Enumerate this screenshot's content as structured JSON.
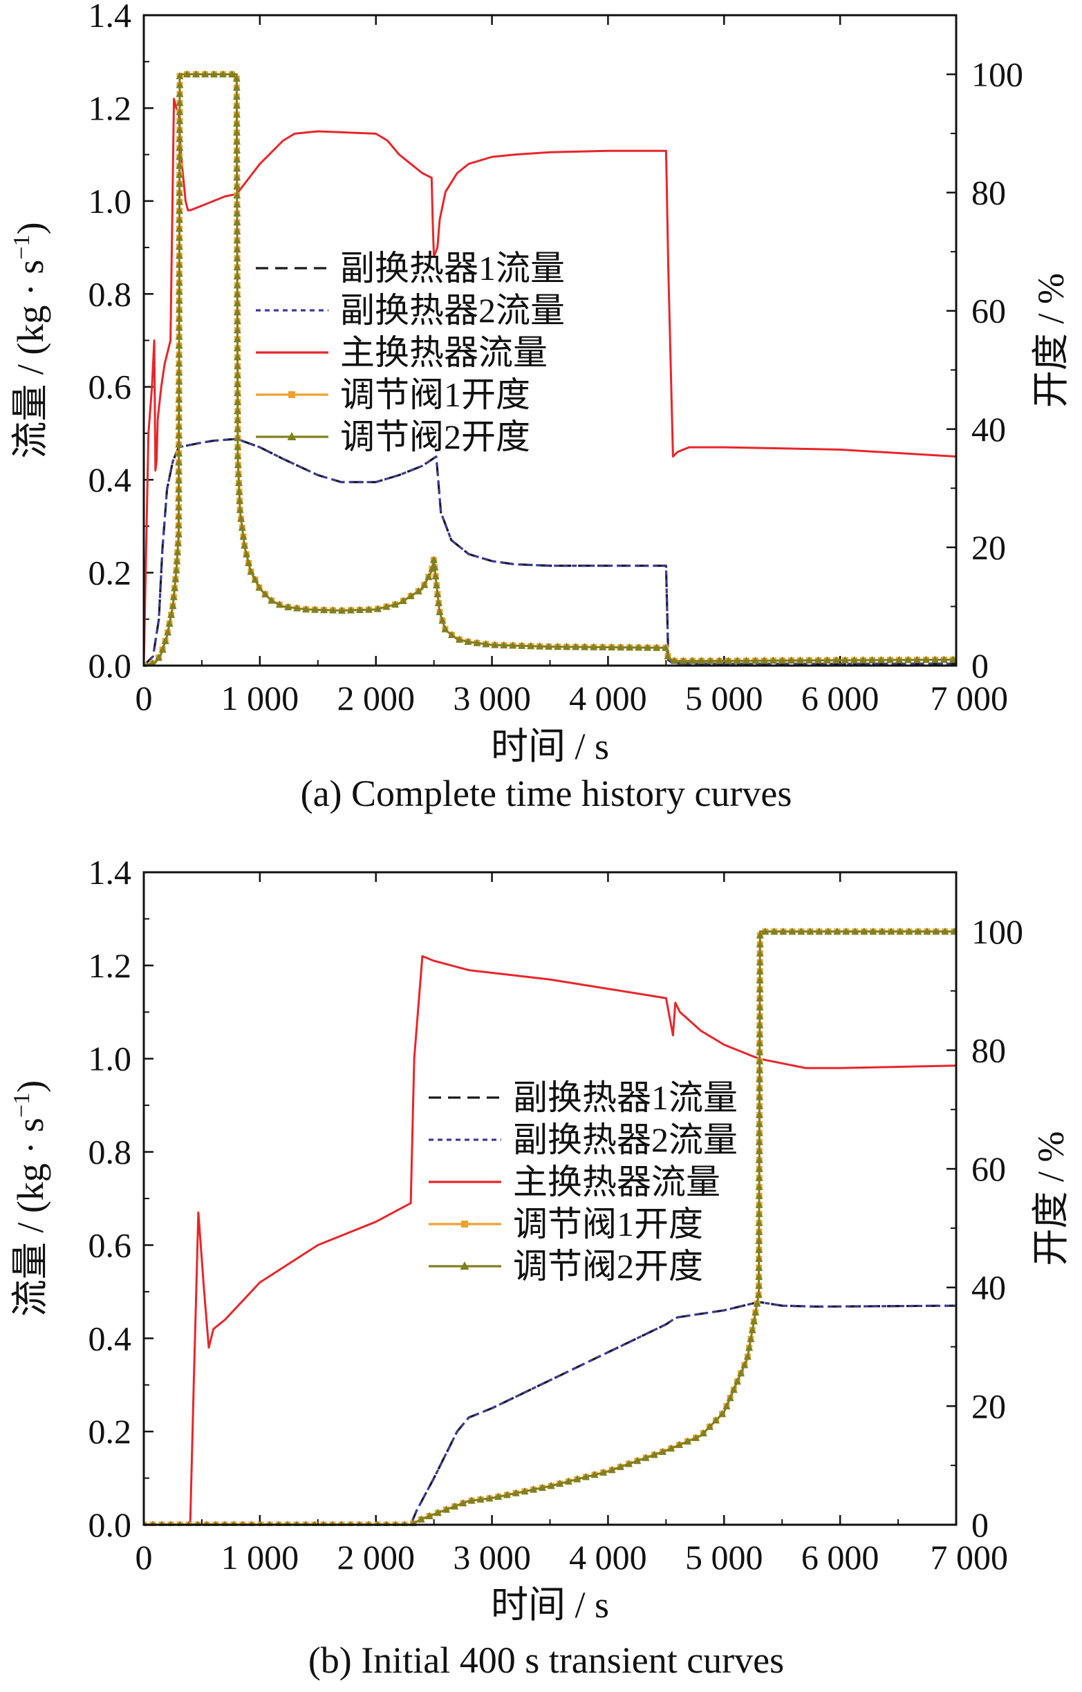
{
  "chart_data": [
    {
      "type": "line",
      "caption": "(a) Complete time history curves",
      "xlabel": "时间 / s",
      "ylabel": "流量 / (kg · s",
      "ylabel_sup": "−1",
      "ylabel_close": ")",
      "y2label": "开度 / %",
      "xlim": [
        0,
        7000
      ],
      "ylim": [
        0,
        1.4
      ],
      "y2lim": [
        0,
        110
      ],
      "x_ticks": [
        0,
        1000,
        2000,
        3000,
        4000,
        5000,
        6000,
        7000
      ],
      "x_tick_labels": [
        "0",
        "1 000",
        "2 000",
        "3 000",
        "4 000",
        "5 000",
        "6 000",
        "7 000"
      ],
      "y_ticks": [
        0,
        0.2,
        0.4,
        0.6,
        0.8,
        1.0,
        1.2,
        1.4
      ],
      "y_tick_labels": [
        "0.0",
        "0.2",
        "0.4",
        "0.6",
        "0.8",
        "1.0",
        "1.2",
        "1.4"
      ],
      "y2_ticks": [
        0,
        20,
        40,
        60,
        80,
        100
      ],
      "y2_tick_labels": [
        "0",
        "20",
        "40",
        "60",
        "80",
        "100"
      ],
      "legend_position": "center",
      "series": [
        {
          "name": "副换热器1流量",
          "axis": "left",
          "color": "#1a1a1a",
          "style": "dashed",
          "x": [
            0,
            80,
            130,
            160,
            200,
            250,
            300,
            400,
            500,
            600,
            700,
            800,
            1000,
            1200,
            1500,
            1700,
            2000,
            2200,
            2400,
            2520,
            2560,
            2650,
            2800,
            3000,
            3200,
            3500,
            4000,
            4500,
            4520,
            4560,
            5000,
            6000,
            7000
          ],
          "y": [
            0,
            0.02,
            0.1,
            0.25,
            0.38,
            0.44,
            0.47,
            0.475,
            0.48,
            0.484,
            0.486,
            0.488,
            0.47,
            0.445,
            0.41,
            0.395,
            0.395,
            0.41,
            0.43,
            0.45,
            0.33,
            0.27,
            0.24,
            0.225,
            0.218,
            0.215,
            0.215,
            0.215,
            0.012,
            0.005,
            0.004,
            0.004,
            0.004
          ]
        },
        {
          "name": "副换热器2流量",
          "axis": "left",
          "color": "#3a3aa0",
          "style": "dotted",
          "x": [
            0,
            80,
            130,
            160,
            200,
            250,
            300,
            400,
            500,
            600,
            700,
            800,
            1000,
            1200,
            1500,
            1700,
            2000,
            2200,
            2400,
            2520,
            2560,
            2650,
            2800,
            3000,
            3200,
            3500,
            4000,
            4500,
            4520,
            4560,
            5000,
            6000,
            7000
          ],
          "y": [
            0,
            0.02,
            0.1,
            0.25,
            0.38,
            0.44,
            0.47,
            0.475,
            0.48,
            0.484,
            0.486,
            0.488,
            0.47,
            0.445,
            0.41,
            0.395,
            0.395,
            0.41,
            0.43,
            0.45,
            0.33,
            0.27,
            0.24,
            0.225,
            0.218,
            0.215,
            0.215,
            0.215,
            0.012,
            0.005,
            0.004,
            0.004,
            0.004
          ]
        },
        {
          "name": "主换热器流量",
          "axis": "left",
          "color": "#e8252a",
          "style": "solid",
          "x": [
            0,
            40,
            70,
            90,
            100,
            110,
            120,
            150,
            180,
            210,
            230,
            260,
            280,
            300,
            320,
            340,
            360,
            380,
            400,
            500,
            600,
            700,
            800,
            1000,
            1200,
            1300,
            1500,
            2000,
            2100,
            2200,
            2300,
            2400,
            2480,
            2490,
            2500,
            2530,
            2550,
            2600,
            2700,
            2800,
            3000,
            3200,
            3500,
            4000,
            4500,
            4520,
            4560,
            4600,
            4700,
            5000,
            6000,
            7000
          ],
          "y": [
            0,
            0.5,
            0.6,
            0.7,
            0.42,
            0.44,
            0.53,
            0.6,
            0.65,
            0.68,
            0.7,
            1.22,
            1.2,
            1.19,
            1.1,
            1.05,
            1.0,
            0.98,
            0.98,
            0.99,
            1.0,
            1.01,
            1.015,
            1.08,
            1.13,
            1.145,
            1.15,
            1.145,
            1.13,
            1.1,
            1.08,
            1.06,
            1.05,
            0.95,
            0.88,
            0.9,
            0.96,
            1.02,
            1.06,
            1.08,
            1.095,
            1.1,
            1.105,
            1.108,
            1.108,
            0.85,
            0.45,
            0.46,
            0.47,
            0.47,
            0.465,
            0.45
          ]
        },
        {
          "name": "调节阀1开度",
          "axis": "right",
          "color": "#f0a030",
          "style": "solid",
          "marker": "square",
          "x": [
            0,
            100,
            150,
            200,
            250,
            280,
            300,
            310,
            320,
            400,
            500,
            600,
            700,
            790,
            800,
            810,
            830,
            870,
            920,
            1000,
            1100,
            1200,
            1400,
            1700,
            2000,
            2200,
            2400,
            2480,
            2500,
            2520,
            2550,
            2600,
            2700,
            2800,
            3000,
            3500,
            4000,
            4500,
            4520,
            4560,
            5000,
            6000,
            7000
          ],
          "y": [
            0,
            0.5,
            2,
            5,
            10,
            16,
            22,
            100,
            100,
            100,
            100,
            100,
            100,
            100,
            100,
            35,
            26,
            20,
            16,
            13,
            11,
            10,
            9.5,
            9.3,
            9.5,
            10.5,
            13,
            16,
            18,
            14,
            9,
            6,
            4.5,
            4,
            3.5,
            3.2,
            3.1,
            3.0,
            1.2,
            0.8,
            0.8,
            0.9,
            1.0
          ]
        },
        {
          "name": "调节阀2开度",
          "axis": "right",
          "color": "#808020",
          "style": "solid",
          "marker": "triangle",
          "x": [
            0,
            100,
            150,
            200,
            250,
            280,
            300,
            310,
            320,
            400,
            500,
            600,
            700,
            790,
            800,
            810,
            830,
            870,
            920,
            1000,
            1100,
            1200,
            1400,
            1700,
            2000,
            2200,
            2400,
            2480,
            2500,
            2520,
            2550,
            2600,
            2700,
            2800,
            3000,
            3500,
            4000,
            4500,
            4520,
            4560,
            5000,
            6000,
            7000
          ],
          "y": [
            0,
            0.5,
            2,
            5,
            10,
            16,
            22,
            100,
            100,
            100,
            100,
            100,
            100,
            100,
            100,
            35,
            26,
            20,
            16,
            13,
            11,
            10,
            9.5,
            9.3,
            9.5,
            10.5,
            13,
            16,
            18,
            14,
            9,
            6,
            4.5,
            4,
            3.5,
            3.2,
            3.1,
            3.0,
            1.2,
            0.8,
            0.8,
            0.9,
            1.0
          ]
        }
      ]
    },
    {
      "type": "line",
      "caption": "(b) Initial 400 s transient curves",
      "xlabel": "时间 / s",
      "ylabel": "流量 / (kg · s",
      "ylabel_sup": "−1",
      "ylabel_close": ")",
      "y2label": "开度 / %",
      "xlim": [
        0,
        7000
      ],
      "ylim": [
        0,
        1.4
      ],
      "y2lim": [
        0,
        110
      ],
      "x_ticks": [
        0,
        1000,
        2000,
        3000,
        4000,
        5000,
        6000,
        7000
      ],
      "x_tick_labels": [
        "0",
        "1 000",
        "2 000",
        "3 000",
        "4 000",
        "5 000",
        "6 000",
        "7 000"
      ],
      "y_ticks": [
        0,
        0.2,
        0.4,
        0.6,
        0.8,
        1.0,
        1.2,
        1.4
      ],
      "y_tick_labels": [
        "0.0",
        "0.2",
        "0.4",
        "0.6",
        "0.8",
        "1.0",
        "1.2",
        "1.4"
      ],
      "y2_ticks": [
        0,
        20,
        40,
        60,
        80,
        100
      ],
      "y2_tick_labels": [
        "0",
        "20",
        "40",
        "60",
        "80",
        "100"
      ],
      "legend_position": "center-right",
      "series": [
        {
          "name": "副换热器1流量",
          "axis": "left",
          "color": "#1a1a1a",
          "style": "dashed",
          "x": [
            0,
            2300,
            2350,
            2500,
            2600,
            2700,
            2800,
            3000,
            3500,
            4000,
            4500,
            4560,
            4600,
            5000,
            5300,
            5500,
            5800,
            7000
          ],
          "y": [
            0,
            0,
            0.03,
            0.1,
            0.15,
            0.2,
            0.23,
            0.25,
            0.31,
            0.37,
            0.43,
            0.44,
            0.445,
            0.46,
            0.478,
            0.47,
            0.468,
            0.47
          ]
        },
        {
          "name": "副换热器2流量",
          "axis": "left",
          "color": "#3a3aa0",
          "style": "dotted",
          "x": [
            0,
            2300,
            2350,
            2500,
            2600,
            2700,
            2800,
            3000,
            3500,
            4000,
            4500,
            4560,
            4600,
            5000,
            5300,
            5500,
            5800,
            7000
          ],
          "y": [
            0,
            0,
            0.03,
            0.1,
            0.15,
            0.2,
            0.23,
            0.25,
            0.31,
            0.37,
            0.43,
            0.44,
            0.445,
            0.46,
            0.478,
            0.47,
            0.468,
            0.47
          ]
        },
        {
          "name": "主换热器流量",
          "axis": "left",
          "color": "#e8252a",
          "style": "solid",
          "x": [
            0,
            400,
            430,
            470,
            520,
            560,
            600,
            700,
            1000,
            1500,
            2000,
            2300,
            2330,
            2400,
            2500,
            2800,
            3500,
            4000,
            4500,
            4560,
            4580,
            4620,
            4800,
            5000,
            5300,
            5700,
            6000,
            7000
          ],
          "y": [
            0,
            0,
            0.3,
            0.67,
            0.5,
            0.38,
            0.42,
            0.44,
            0.52,
            0.6,
            0.65,
            0.69,
            1.0,
            1.22,
            1.21,
            1.19,
            1.17,
            1.15,
            1.13,
            1.05,
            1.12,
            1.1,
            1.06,
            1.03,
            1.0,
            0.98,
            0.98,
            0.985
          ]
        },
        {
          "name": "调节阀1开度",
          "axis": "right",
          "color": "#f0a030",
          "style": "solid",
          "marker": "square",
          "x": [
            0,
            2300,
            2400,
            2600,
            2800,
            3000,
            3500,
            4000,
            4500,
            4800,
            5000,
            5200,
            5300,
            5310,
            5320,
            5500,
            6000,
            6500,
            7000
          ],
          "y": [
            0,
            0,
            1,
            2.5,
            4,
            4.5,
            6.5,
            9,
            12.5,
            15,
            19,
            28,
            39,
            100,
            100,
            100,
            100,
            100,
            100
          ]
        },
        {
          "name": "调节阀2开度",
          "axis": "right",
          "color": "#808020",
          "style": "solid",
          "marker": "triangle",
          "x": [
            0,
            2300,
            2400,
            2600,
            2800,
            3000,
            3500,
            4000,
            4500,
            4800,
            5000,
            5200,
            5300,
            5310,
            5320,
            5500,
            6000,
            6500,
            7000
          ],
          "y": [
            0,
            0,
            1,
            2.5,
            4,
            4.5,
            6.5,
            9,
            12.5,
            15,
            19,
            28,
            39,
            100,
            100,
            100,
            100,
            100,
            100
          ]
        }
      ]
    }
  ]
}
